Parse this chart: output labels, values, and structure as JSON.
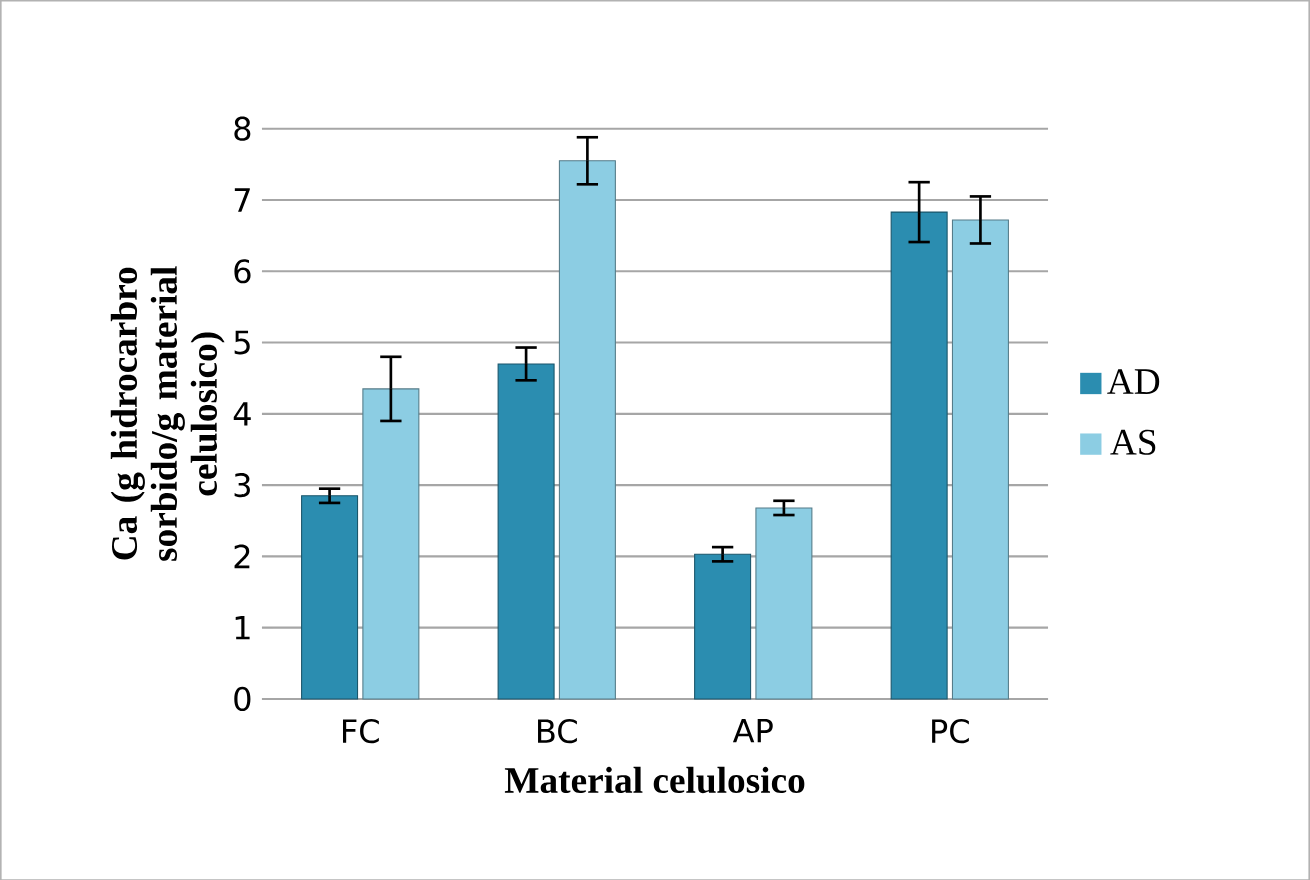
{
  "chart_data": {
    "type": "bar",
    "xlabel": "Material celulosico",
    "ylabel": "Ca (g hidrocarbro sorbido/g material celulosico)",
    "categories": [
      "FC",
      "BC",
      "AP",
      "PC"
    ],
    "series": [
      {
        "name": "AD",
        "color": "#2b8db0",
        "values": [
          2.85,
          4.7,
          2.03,
          6.83
        ],
        "errors": [
          0.1,
          0.23,
          0.1,
          0.42
        ]
      },
      {
        "name": "AS",
        "color": "#8ccde3",
        "values": [
          4.35,
          7.55,
          2.68,
          6.72
        ],
        "errors": [
          0.45,
          0.33,
          0.1,
          0.33
        ]
      }
    ],
    "ylim": [
      0,
      8
    ],
    "yticks": [
      0,
      1,
      2,
      3,
      4,
      5,
      6,
      7,
      8
    ],
    "grid": "y",
    "legend": "right"
  }
}
